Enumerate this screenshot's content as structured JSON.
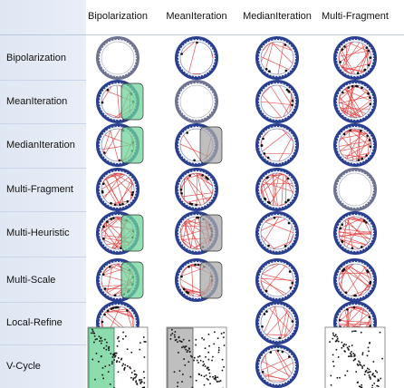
{
  "columns": [
    "Bipolarization",
    "MeanIteration",
    "MedianIteration",
    "Multi-Fragment"
  ],
  "rows": [
    "Bipolarization",
    "MeanIteration",
    "MedianIteration",
    "Multi-Fragment",
    "Multi-Heuristic",
    "Multi-Scale",
    "Local-Refine",
    "V-Cycle"
  ],
  "colors": {
    "ring_outer": "#2a3f8f",
    "ring_inner": "#7f8fc2",
    "chord": "#e23c3c",
    "green_overlay": "#6fd39a",
    "gray_overlay": "#a9a9a9",
    "matrix_dot": "#111111"
  },
  "cells": [
    [
      "self",
      "sparse",
      "medium",
      "dense"
    ],
    [
      "medium-green",
      "self",
      "medium",
      "dense"
    ],
    [
      "medium-green",
      "sparse-gray",
      "medium",
      "dense"
    ],
    [
      "dense",
      "dense",
      "dense",
      "self"
    ],
    [
      "dense-green",
      "dense-gray",
      "medium",
      "dense"
    ],
    [
      "dense-green",
      "dense-gray",
      "medium",
      "dense"
    ],
    [
      "dense",
      "",
      "medium",
      "dense"
    ],
    [
      "matrix-green",
      "matrix-gray",
      "medium",
      "matrix"
    ]
  ]
}
